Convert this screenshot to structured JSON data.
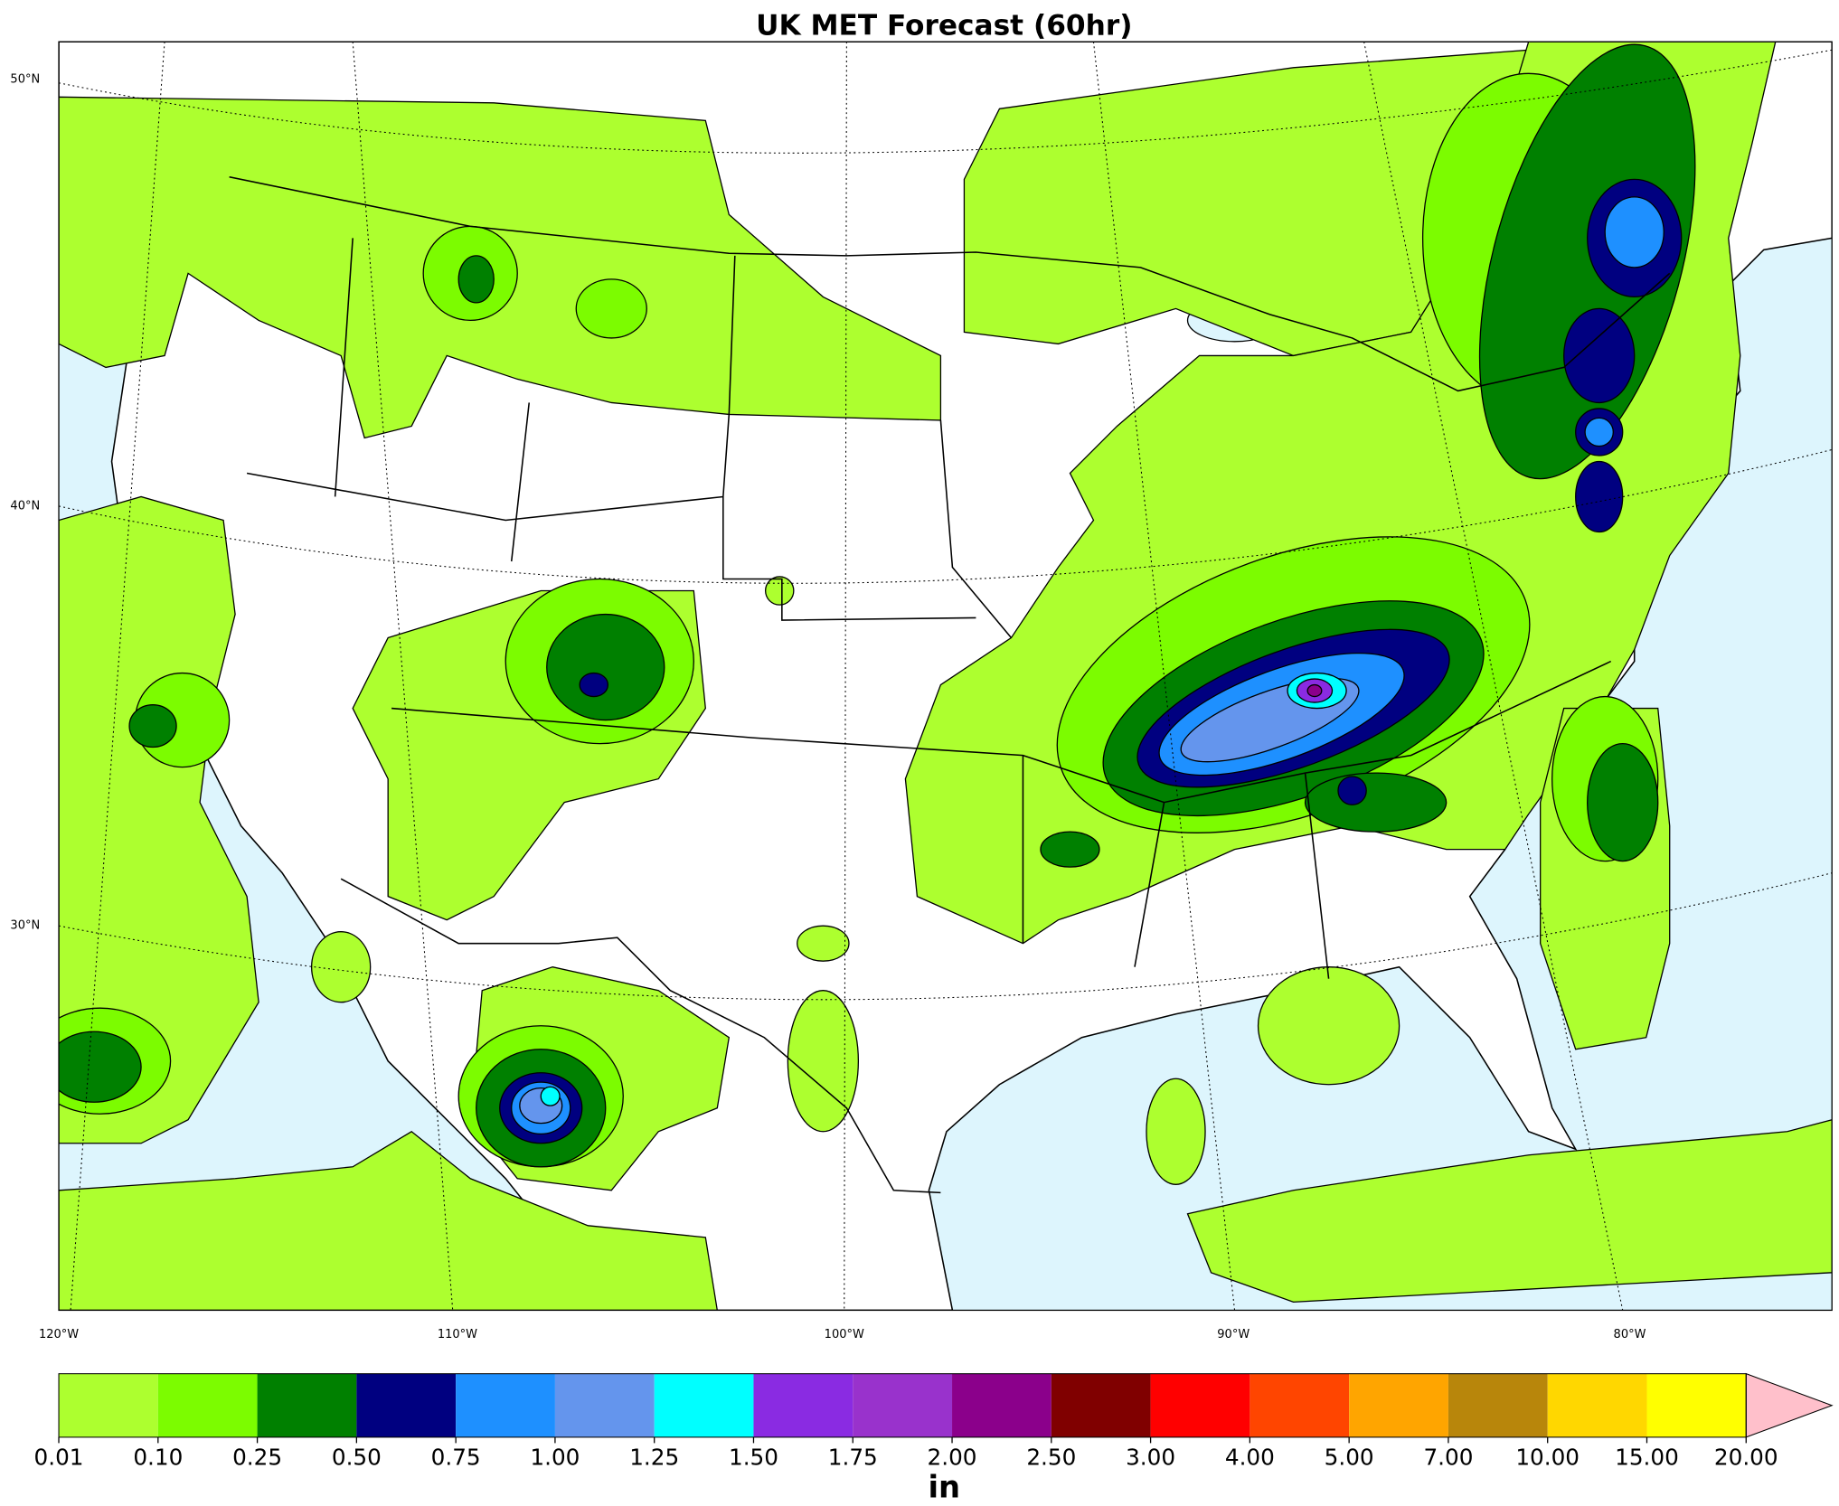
{
  "title": "UK MET Forecast (60hr)",
  "map": {
    "lat_labels": [
      "50°N",
      "40°N",
      "30°N"
    ],
    "lon_labels": [
      "120°W",
      "110°W",
      "100°W",
      "90°W",
      "80°W"
    ]
  },
  "colorbar": {
    "label": "in",
    "ticks": [
      {
        "value": 0.01,
        "label": "0.01"
      },
      {
        "value": 0.1,
        "label": "0.10"
      },
      {
        "value": 0.25,
        "label": "0.25"
      },
      {
        "value": 0.5,
        "label": "0.50"
      },
      {
        "value": 0.75,
        "label": "0.75"
      },
      {
        "value": 1,
        "label": "1.00"
      },
      {
        "value": 1.25,
        "label": "1.25"
      },
      {
        "value": 1.5,
        "label": "1.50"
      },
      {
        "value": 1.75,
        "label": "1.75"
      },
      {
        "value": 2,
        "label": "2.00"
      },
      {
        "value": 2.5,
        "label": "2.50"
      },
      {
        "value": 3,
        "label": "3.00"
      },
      {
        "value": 4,
        "label": "4.00"
      },
      {
        "value": 5,
        "label": "5.00"
      },
      {
        "value": 7,
        "label": "7.00"
      },
      {
        "value": 10,
        "label": "10.00"
      },
      {
        "value": 15,
        "label": "15.00"
      },
      {
        "value": 20,
        "label": "20.00"
      }
    ],
    "colors": [
      "#adff2f",
      "#7cfc00",
      "#008000",
      "#000080",
      "#1e90ff",
      "#6495ed",
      "#00ffff",
      "#8a2be2",
      "#9932cc",
      "#8b008b",
      "#800000",
      "#ff0000",
      "#ff4500",
      "#ffa500",
      "#b8860b",
      "#ffd700",
      "#ffff00"
    ],
    "extend_color": "#ffc0cb"
  }
}
